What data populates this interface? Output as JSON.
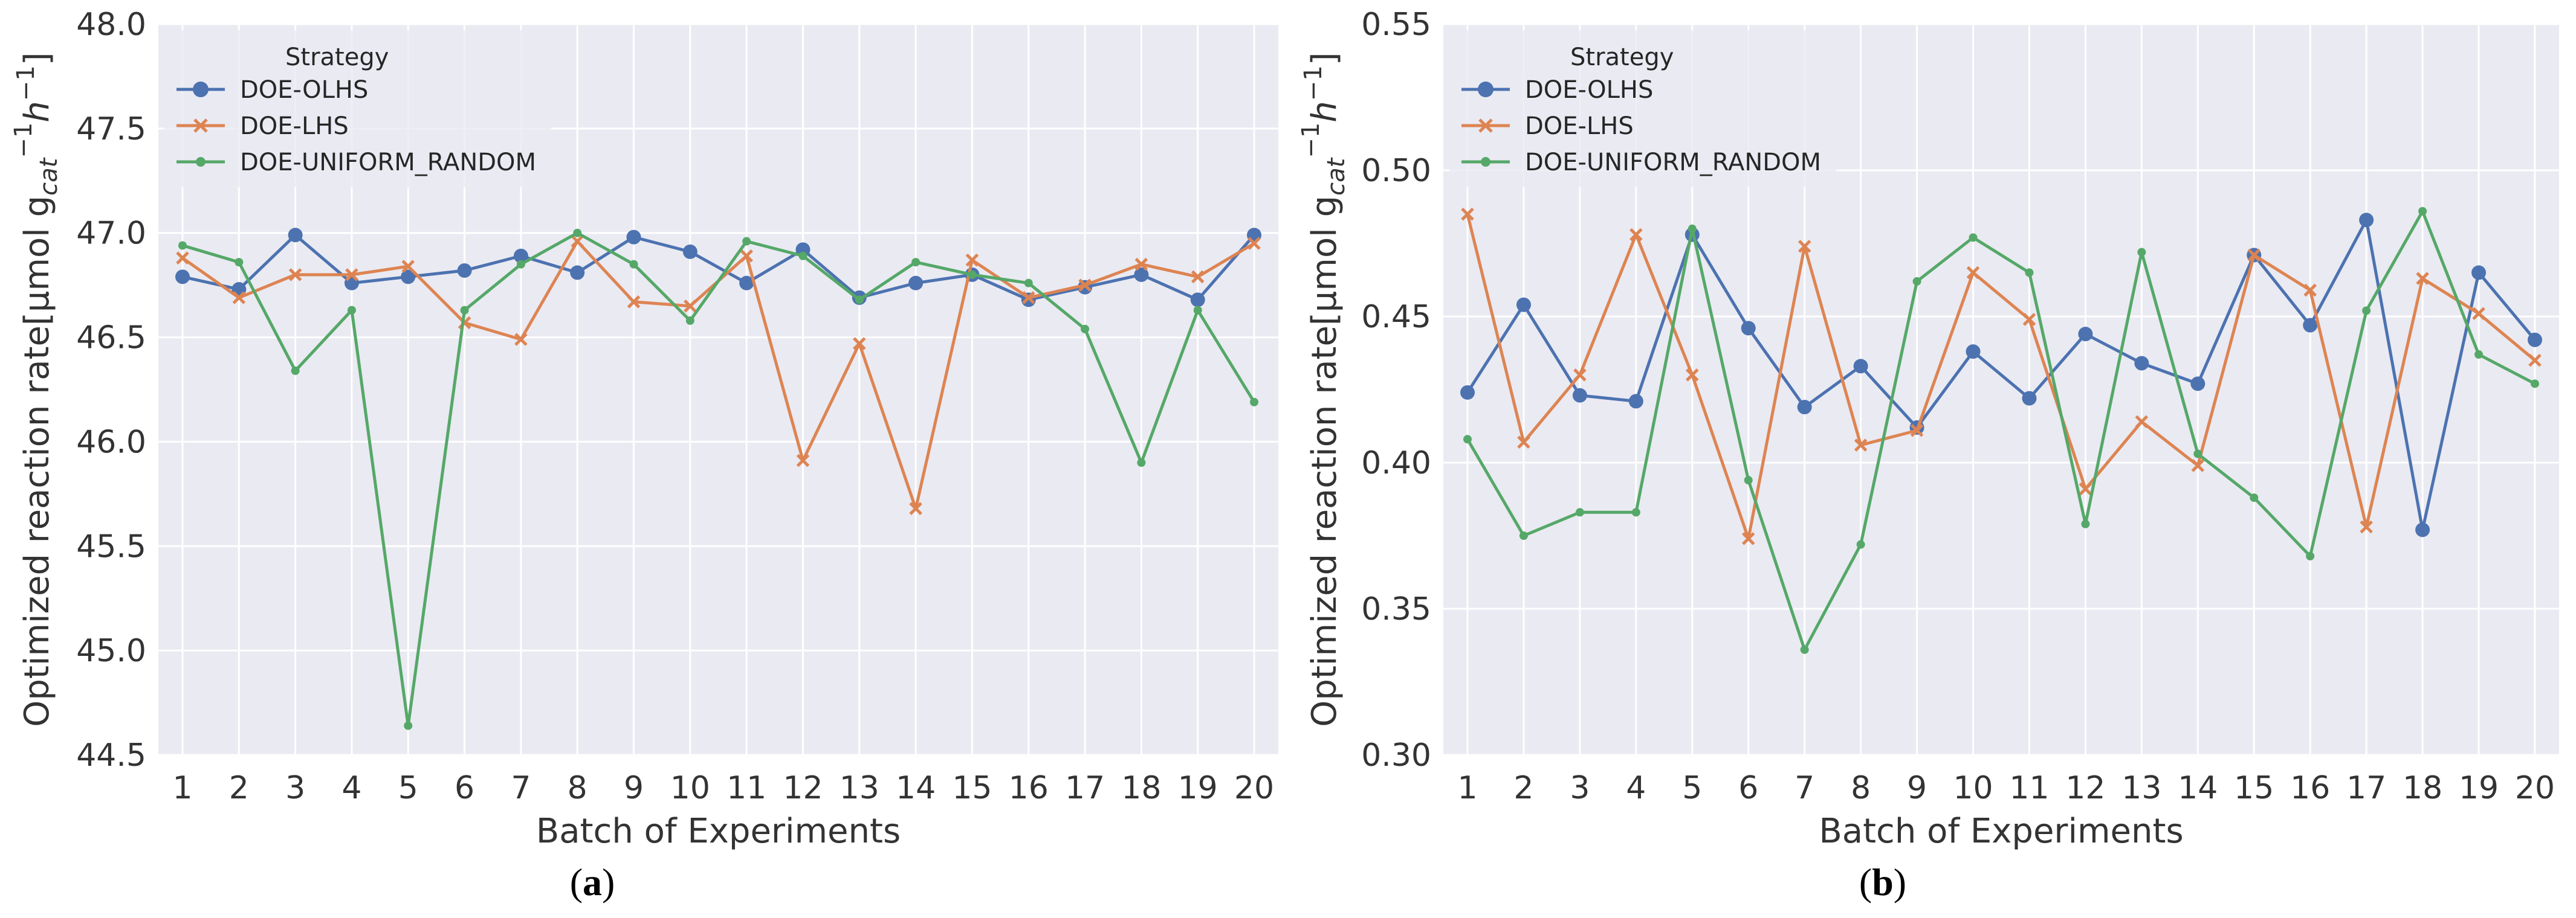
{
  "chart_data": [
    {
      "type": "line",
      "panel": "(a)",
      "panel_open": "(",
      "panel_letter": "a",
      "panel_close": ")",
      "xlabel": "Batch of Experiments",
      "ylabel": "Optimized reaction rate[μmol g_cat^-1 h^-1]",
      "ylabel_main": "Optimized reaction rate[μmol g",
      "ylabel_sub_cat": "cat",
      "ylabel_sup_1": "−1",
      "ylabel_h": "h",
      "ylabel_sup_2": "−1",
      "ylabel_close": "]",
      "ylim": [
        44.5,
        48.0
      ],
      "yticks": [
        44.5,
        45.0,
        45.5,
        46.0,
        46.5,
        47.0,
        47.5,
        48.0
      ],
      "ytick_labels": [
        "44.5",
        "45.0",
        "45.5",
        "46.0",
        "46.5",
        "47.0",
        "47.5",
        "48.0"
      ],
      "x": [
        1,
        2,
        3,
        4,
        5,
        6,
        7,
        8,
        9,
        10,
        11,
        12,
        13,
        14,
        15,
        16,
        17,
        18,
        19,
        20
      ],
      "legend_title": "Strategy",
      "legend_position": "upper-left",
      "grid": true,
      "series": [
        {
          "name": "DOE-OLHS",
          "color": "#4c72b0",
          "marker": "circle",
          "values": [
            46.79,
            46.73,
            46.99,
            46.76,
            46.79,
            46.82,
            46.89,
            46.81,
            46.98,
            46.91,
            46.76,
            46.92,
            46.69,
            46.76,
            46.8,
            46.68,
            46.74,
            46.8,
            46.68,
            46.99
          ]
        },
        {
          "name": "DOE-LHS",
          "color": "#dd8452",
          "marker": "x",
          "values": [
            46.88,
            46.69,
            46.8,
            46.8,
            46.84,
            46.57,
            46.49,
            46.96,
            46.67,
            46.65,
            46.89,
            45.91,
            46.47,
            45.68,
            46.87,
            46.69,
            46.75,
            46.85,
            46.79,
            46.95
          ]
        },
        {
          "name": "DOE-UNIFORM_RANDOM",
          "color": "#55a868",
          "marker": "dot",
          "values": [
            46.94,
            46.86,
            46.34,
            46.63,
            44.64,
            46.63,
            46.85,
            47.0,
            46.85,
            46.58,
            46.96,
            46.89,
            46.68,
            46.86,
            46.8,
            46.76,
            46.54,
            45.9,
            46.63,
            46.19
          ]
        }
      ]
    },
    {
      "type": "line",
      "panel": "(b)",
      "panel_open": "(",
      "panel_letter": "b",
      "panel_close": ")",
      "xlabel": "Batch of Experiments",
      "ylabel": "Optimized reaction rate[μmol g_cat^-1 h^-1]",
      "ylabel_main": "Optimized reaction rate[μmol g",
      "ylabel_sub_cat": "cat",
      "ylabel_sup_1": "−1",
      "ylabel_h": "h",
      "ylabel_sup_2": "−1",
      "ylabel_close": "]",
      "ylim": [
        0.3,
        0.55
      ],
      "yticks": [
        0.3,
        0.35,
        0.4,
        0.45,
        0.5,
        0.55
      ],
      "ytick_labels": [
        "0.30",
        "0.35",
        "0.40",
        "0.45",
        "0.50",
        "0.55"
      ],
      "x": [
        1,
        2,
        3,
        4,
        5,
        6,
        7,
        8,
        9,
        10,
        11,
        12,
        13,
        14,
        15,
        16,
        17,
        18,
        19,
        20
      ],
      "legend_title": "Strategy",
      "legend_position": "upper-left",
      "grid": true,
      "series": [
        {
          "name": "DOE-OLHS",
          "color": "#4c72b0",
          "marker": "circle",
          "values": [
            0.424,
            0.454,
            0.423,
            0.421,
            0.478,
            0.446,
            0.419,
            0.433,
            0.412,
            0.438,
            0.422,
            0.444,
            0.434,
            0.427,
            0.471,
            0.447,
            0.483,
            0.377,
            0.465,
            0.442
          ]
        },
        {
          "name": "DOE-LHS",
          "color": "#dd8452",
          "marker": "x",
          "values": [
            0.485,
            0.407,
            0.43,
            0.478,
            0.43,
            0.374,
            0.474,
            0.406,
            0.411,
            0.465,
            0.449,
            0.391,
            0.414,
            0.399,
            0.471,
            0.459,
            0.378,
            0.463,
            0.451,
            0.435
          ]
        },
        {
          "name": "DOE-UNIFORM_RANDOM",
          "color": "#55a868",
          "marker": "dot",
          "values": [
            0.408,
            0.375,
            0.383,
            0.383,
            0.48,
            0.394,
            0.336,
            0.372,
            0.462,
            0.477,
            0.465,
            0.379,
            0.472,
            0.403,
            0.388,
            0.368,
            0.452,
            0.486,
            0.437,
            0.427
          ]
        }
      ]
    }
  ]
}
